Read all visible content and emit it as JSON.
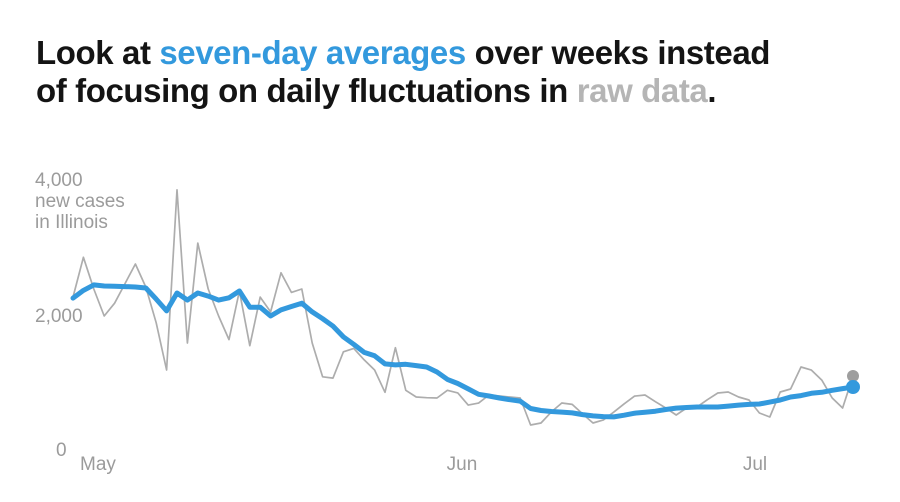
{
  "title": {
    "lines": [
      [
        {
          "text": "Look at ",
          "style": "dark"
        },
        {
          "text": "seven-day averages",
          "style": "blue"
        },
        {
          "text": " over weeks instead",
          "style": "dark"
        }
      ],
      [
        {
          "text": "of focusing on daily fluctuations in ",
          "style": "dark"
        },
        {
          "text": "raw data",
          "style": "gray"
        },
        {
          "text": ".",
          "style": "dark"
        }
      ]
    ],
    "full_text": "Look at seven-day averages over weeks instead of focusing on daily fluctuations in raw data."
  },
  "colors": {
    "background": "#ffffff",
    "title_dark": "#141414",
    "accent_blue": "#3399dd",
    "title_muted_gray": "#b5b5b5",
    "raw_line_gray": "#adadad",
    "raw_dot_gray": "#9e9e9e",
    "axis_label_gray": "#9b9b9b"
  },
  "chart_data": {
    "type": "line",
    "title": "Look at seven-day averages over weeks instead of focusing on daily fluctuations in raw data.",
    "xlabel": "",
    "ylabel": "new cases in Illinois",
    "y_axis_unit_lines": [
      "new cases",
      "in Illinois"
    ],
    "y_ticks": [
      {
        "value": 4000,
        "label": "4,000"
      },
      {
        "value": 2000,
        "label": "2,000"
      },
      {
        "value": 0,
        "label": "0"
      }
    ],
    "x_tick_labels": [
      "May",
      "Jun",
      "Jul"
    ],
    "ylim": [
      0,
      4000
    ],
    "grid": false,
    "legend_position": "none (series identified by colored words in title)",
    "x_range_note": "daily values from about May 1 to mid-July",
    "series": [
      {
        "name": "raw data",
        "color": "#adadad",
        "endpoint_dot_color": "#9e9e9e",
        "values": [
          2280,
          2870,
          2400,
          2000,
          2190,
          2480,
          2770,
          2430,
          1900,
          1200,
          3870,
          1600,
          3080,
          2400,
          2000,
          1650,
          2370,
          1560,
          2280,
          2060,
          2640,
          2350,
          2400,
          1600,
          1100,
          1080,
          1470,
          1520,
          1350,
          1200,
          870,
          1530,
          900,
          800,
          790,
          785,
          900,
          860,
          680,
          710,
          830,
          815,
          800,
          785,
          385,
          415,
          580,
          711,
          690,
          550,
          415,
          460,
          577,
          700,
          814,
          829,
          730,
          637,
          533,
          637,
          652,
          760,
          859,
          874,
          800,
          755,
          563,
          503,
          874,
          918,
          1244,
          1199,
          1051,
          785,
          637,
          1111
        ]
      },
      {
        "name": "seven-day average",
        "color": "#3399dd",
        "endpoint_dot_color": "#3399dd",
        "values": [
          2265,
          2380,
          2460,
          2445,
          2440,
          2435,
          2430,
          2415,
          2250,
          2075,
          2340,
          2235,
          2340,
          2295,
          2235,
          2270,
          2370,
          2130,
          2130,
          2000,
          2090,
          2140,
          2190,
          2060,
          1960,
          1850,
          1690,
          1580,
          1460,
          1410,
          1290,
          1275,
          1285,
          1265,
          1245,
          1170,
          1060,
          1000,
          920,
          840,
          815,
          785,
          760,
          740,
          630,
          600,
          585,
          577,
          565,
          540,
          520,
          510,
          505,
          530,
          560,
          575,
          590,
          615,
          635,
          645,
          652,
          652,
          652,
          665,
          680,
          690,
          696,
          725,
          755,
          800,
          820,
          855,
          870,
          900,
          925,
          948
        ]
      }
    ]
  }
}
